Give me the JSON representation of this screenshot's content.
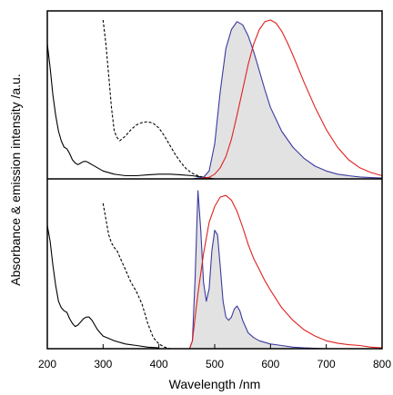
{
  "chart_data": {
    "type": "line",
    "xlabel": "Wavelength  /nm",
    "ylabel": "Absorbance & emission intensity  /a.u.",
    "xlim": [
      200,
      800
    ],
    "xticks": [
      "200",
      "300",
      "400",
      "500",
      "600",
      "700",
      "800"
    ],
    "y_tick_labels": false,
    "panels": [
      {
        "position": "top",
        "ylim": [
          0,
          1
        ],
        "baseline": 0,
        "series": [
          {
            "style": "solid",
            "color": "#000000",
            "x": [
              200,
              205,
              210,
              215,
              220,
              225,
              230,
              235,
              240,
              245,
              250,
              255,
              260,
              265,
              270,
              275,
              280,
              290,
              300,
              320,
              340,
              360,
              380,
              400,
              420,
              440,
              460,
              480,
              490,
              500
            ],
            "y": [
              0.85,
              0.7,
              0.53,
              0.4,
              0.3,
              0.24,
              0.2,
              0.19,
              0.16,
              0.12,
              0.1,
              0.09,
              0.1,
              0.11,
              0.11,
              0.1,
              0.09,
              0.07,
              0.05,
              0.03,
              0.02,
              0.02,
              0.025,
              0.03,
              0.03,
              0.025,
              0.02,
              0.01,
              0.005,
              0.0
            ]
          },
          {
            "style": "dashed",
            "color": "#000000",
            "x": [
              300,
              305,
              310,
              315,
              320,
              325,
              330,
              340,
              350,
              360,
              370,
              380,
              390,
              400,
              410,
              420,
              430,
              440,
              450,
              460,
              470,
              480,
              490
            ],
            "y": [
              1.0,
              0.85,
              0.65,
              0.45,
              0.3,
              0.26,
              0.24,
              0.27,
              0.31,
              0.34,
              0.355,
              0.36,
              0.35,
              0.32,
              0.27,
              0.21,
              0.15,
              0.1,
              0.06,
              0.035,
              0.02,
              0.01,
              0.005
            ]
          },
          {
            "style": "solid",
            "color": "#3a3aa0",
            "fill": "#d8d8d8",
            "x": [
              460,
              470,
              480,
              490,
              500,
              510,
              520,
              530,
              540,
              550,
              560,
              570,
              580,
              590,
              600,
              620,
              640,
              660,
              680,
              700,
              720,
              740,
              760,
              780,
              800
            ],
            "y": [
              0.0,
              0.005,
              0.01,
              0.05,
              0.22,
              0.55,
              0.82,
              0.94,
              0.99,
              0.97,
              0.9,
              0.8,
              0.68,
              0.56,
              0.45,
              0.3,
              0.2,
              0.13,
              0.08,
              0.05,
              0.03,
              0.02,
              0.012,
              0.008,
              0.005
            ]
          },
          {
            "style": "solid",
            "color": "#e02020",
            "x": [
              470,
              490,
              500,
              510,
              520,
              530,
              540,
              550,
              560,
              570,
              580,
              590,
              600,
              610,
              620,
              630,
              640,
              660,
              680,
              700,
              720,
              740,
              760,
              780,
              800
            ],
            "y": [
              0.0,
              0.01,
              0.03,
              0.07,
              0.14,
              0.25,
              0.4,
              0.56,
              0.72,
              0.85,
              0.94,
              0.99,
              1.0,
              0.98,
              0.93,
              0.86,
              0.78,
              0.61,
              0.45,
              0.31,
              0.2,
              0.12,
              0.07,
              0.04,
              0.02
            ]
          }
        ]
      },
      {
        "position": "bottom",
        "ylim": [
          0,
          1
        ],
        "baseline": 0,
        "series": [
          {
            "style": "solid",
            "color": "#000000",
            "x": [
              200,
              205,
              210,
              215,
              220,
              225,
              230,
              235,
              240,
              245,
              250,
              255,
              260,
              265,
              270,
              275,
              280,
              290,
              300,
              320,
              340,
              360,
              380,
              400
            ],
            "y": [
              0.78,
              0.68,
              0.53,
              0.4,
              0.3,
              0.26,
              0.24,
              0.23,
              0.19,
              0.16,
              0.14,
              0.15,
              0.17,
              0.19,
              0.2,
              0.2,
              0.18,
              0.12,
              0.08,
              0.05,
              0.03,
              0.02,
              0.01,
              0.005
            ]
          },
          {
            "style": "dashed",
            "color": "#000000",
            "x": [
              300,
              305,
              310,
              315,
              320,
              325,
              330,
              340,
              350,
              360,
              370,
              380,
              390,
              400,
              410,
              420
            ],
            "y": [
              0.92,
              0.82,
              0.72,
              0.67,
              0.64,
              0.62,
              0.58,
              0.5,
              0.42,
              0.36,
              0.28,
              0.16,
              0.07,
              0.03,
              0.01,
              0.0
            ]
          },
          {
            "style": "solid",
            "color": "#3a3aa0",
            "fill": "#d8d8d8",
            "x": [
              455,
              460,
              465,
              470,
              475,
              480,
              485,
              490,
              495,
              500,
              505,
              510,
              515,
              520,
              525,
              530,
              535,
              540,
              545,
              550,
              560,
              570,
              580,
              600,
              620,
              640,
              660,
              700,
              800
            ],
            "y": [
              0.0,
              0.05,
              0.45,
              1.0,
              0.75,
              0.42,
              0.3,
              0.38,
              0.62,
              0.75,
              0.72,
              0.52,
              0.3,
              0.2,
              0.18,
              0.2,
              0.25,
              0.27,
              0.24,
              0.18,
              0.1,
              0.07,
              0.05,
              0.03,
              0.02,
              0.01,
              0.005,
              0.0,
              0.0
            ]
          },
          {
            "style": "solid",
            "color": "#e02020",
            "x": [
              455,
              460,
              470,
              480,
              490,
              500,
              510,
              520,
              530,
              540,
              550,
              560,
              570,
              580,
              590,
              600,
              620,
              640,
              660,
              680,
              700,
              720,
              740,
              760,
              780,
              800
            ],
            "y": [
              0.0,
              0.05,
              0.35,
              0.6,
              0.8,
              0.9,
              0.96,
              0.97,
              0.94,
              0.87,
              0.77,
              0.66,
              0.57,
              0.5,
              0.43,
              0.37,
              0.26,
              0.18,
              0.12,
              0.08,
              0.05,
              0.035,
              0.025,
              0.02,
              0.01,
              0.005
            ]
          }
        ]
      }
    ]
  }
}
